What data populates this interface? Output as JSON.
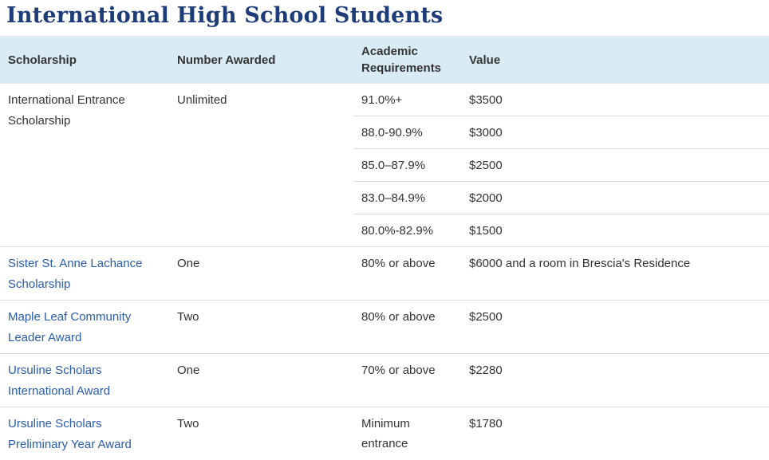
{
  "page": {
    "title": "International High School Students"
  },
  "colors": {
    "header_bg": "#d9ecf6",
    "title_color": "#1e3c78",
    "link_color": "#2a5caa",
    "divider_color": "#dddddd",
    "text_color": "#333333"
  },
  "table": {
    "headers": [
      "Scholarship",
      "Number Awarded",
      "Academic Requirements",
      "Value"
    ],
    "rows": [
      {
        "scholarship": "International Entrance Scholarship",
        "is_link": false,
        "awarded": "Unlimited",
        "tiers": [
          {
            "req": "91.0%+",
            "value": "$3500"
          },
          {
            "req": "88.0-90.9%",
            "value": "$3000"
          },
          {
            "req": "85.0–87.9%",
            "value": "$2500"
          },
          {
            "req": "83.0–84.9%",
            "value": "$2000"
          },
          {
            "req": "80.0%-82.9%",
            "value": "$1500"
          }
        ]
      },
      {
        "scholarship": "Sister St. Anne Lachance Scholarship",
        "is_link": true,
        "awarded": "One",
        "tiers": [
          {
            "req": "80% or above",
            "value": "$6000 and a room in Brescia's Residence"
          }
        ]
      },
      {
        "scholarship": "Maple Leaf Community Leader Award",
        "is_link": true,
        "awarded": "Two",
        "tiers": [
          {
            "req": "80% or above",
            "value": "$2500"
          }
        ]
      },
      {
        "scholarship": "Ursuline Scholars International Award",
        "is_link": true,
        "awarded": "One",
        "tiers": [
          {
            "req": "70% or above",
            "value": "$2280"
          }
        ]
      },
      {
        "scholarship": "Ursuline Scholars Preliminary Year Award",
        "is_link": true,
        "awarded": "Two",
        "tiers": [
          {
            "req": "Minimum entrance",
            "value": "$1780"
          }
        ]
      }
    ]
  }
}
